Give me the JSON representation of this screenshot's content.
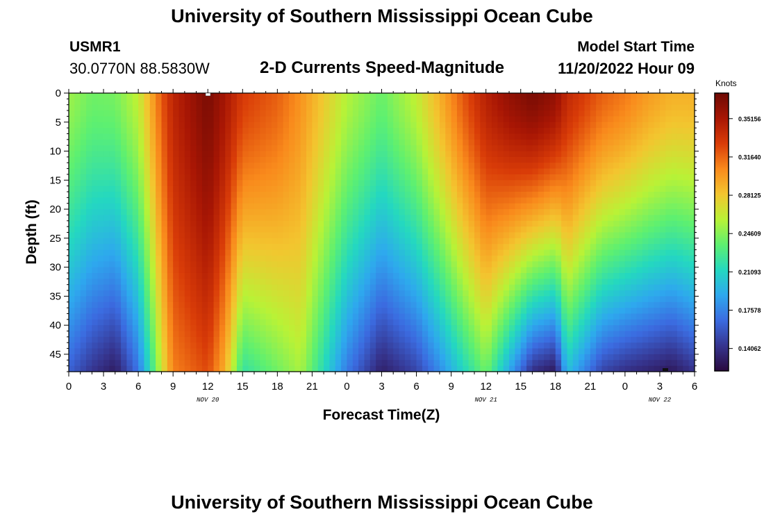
{
  "page": {
    "title": "University of Southern Mississippi Ocean Cube",
    "footer_title": "University of Southern Mississippi Ocean Cube",
    "station_id": "USMR1",
    "station_coords": "30.0770N  88.5830W",
    "subtitle": "2-D Currents Speed-Magnitude",
    "model_label": "Model Start Time",
    "model_time": "11/20/2022 Hour 09"
  },
  "chart_data": {
    "type": "heatmap",
    "title": "2-D Currents Speed-Magnitude",
    "xlabel": "Forecast Time(Z)",
    "ylabel": "Depth (ft)",
    "x_ticks": [
      "0",
      "3",
      "6",
      "9",
      "12",
      "15",
      "18",
      "21",
      "0",
      "3",
      "6",
      "9",
      "12",
      "15",
      "18",
      "21",
      "0",
      "3",
      "6"
    ],
    "x_range_hours": [
      0,
      54
    ],
    "date_labels": [
      {
        "text": "NOV 20",
        "hour": 12
      },
      {
        "text": "NOV 21",
        "hour": 36
      },
      {
        "text": "NOV 22",
        "hour": 51
      }
    ],
    "y_ticks": [
      0,
      5,
      10,
      15,
      20,
      25,
      30,
      35,
      40,
      45
    ],
    "ylim": [
      0,
      48
    ],
    "colorbar": {
      "title": "Knots",
      "ticks": [
        "0.35156",
        "0.31640",
        "0.28125",
        "0.24609",
        "0.21093",
        "0.17578",
        "0.14062"
      ],
      "range": [
        0.12,
        0.375
      ],
      "colors": [
        "#2a0a3e",
        "#36358f",
        "#3b6be0",
        "#2ea8ee",
        "#24d8c0",
        "#5ef070",
        "#b9f236",
        "#f3c52f",
        "#f98a1c",
        "#d93c08",
        "#a81604",
        "#6e0a04"
      ]
    },
    "profile": {
      "depth_ft": [
        0,
        48
      ],
      "hours": [
        0,
        2,
        4,
        6,
        7,
        8,
        9,
        12,
        13.5,
        15,
        18,
        20,
        24,
        27,
        30,
        32,
        34,
        36,
        38,
        40,
        42,
        43,
        46,
        48,
        50,
        52,
        54
      ],
      "surface_knots": [
        0.252,
        0.24,
        0.242,
        0.262,
        0.29,
        0.32,
        0.342,
        0.37,
        0.352,
        0.33,
        0.318,
        0.302,
        0.258,
        0.238,
        0.262,
        0.29,
        0.32,
        0.345,
        0.36,
        0.37,
        0.36,
        0.34,
        0.318,
        0.31,
        0.298,
        0.29,
        0.29
      ],
      "bottom_knots": [
        0.162,
        0.143,
        0.13,
        0.17,
        0.215,
        0.265,
        0.308,
        0.325,
        0.29,
        0.22,
        0.24,
        0.255,
        0.172,
        0.132,
        0.15,
        0.178,
        0.21,
        0.24,
        0.19,
        0.14,
        0.128,
        0.2,
        0.15,
        0.14,
        0.134,
        0.128,
        0.142
      ]
    }
  }
}
